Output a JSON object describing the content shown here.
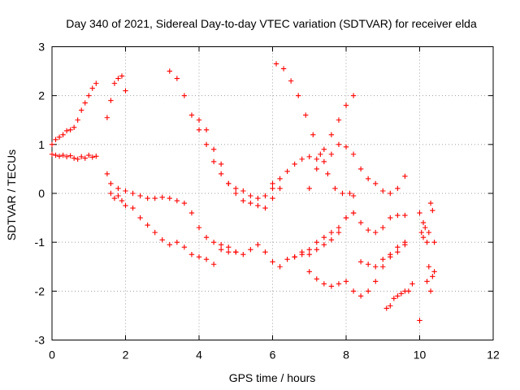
{
  "chart_data": {
    "type": "scatter",
    "title": "Day 340 of 2021, Sidereal Day-to-day VTEC variation (SDTVAR) for receiver elda",
    "xlabel": "GPS time / hours",
    "ylabel": "SDTVAR / TECUs",
    "xlim": [
      0,
      12
    ],
    "ylim": [
      -3,
      3
    ],
    "x_ticks": [
      0,
      2,
      4,
      6,
      8,
      10,
      12
    ],
    "y_ticks": [
      -3,
      -2,
      -1,
      0,
      1,
      2,
      3
    ],
    "x_tick_labels": [
      "0",
      "2",
      "4",
      "6",
      "8",
      "10",
      "12"
    ],
    "y_tick_labels": [
      "-3",
      "-2",
      "-1",
      "0",
      "1",
      "2",
      "3"
    ],
    "grid": true,
    "marker": "+",
    "color": "#ff0000",
    "series": [
      {
        "x": [
          0.0,
          0.1,
          0.2,
          0.3,
          0.4,
          0.5,
          0.6,
          0.7,
          0.8,
          0.9,
          1.0,
          1.1,
          1.2
        ],
        "y": [
          0.8,
          0.78,
          0.76,
          0.78,
          0.75,
          0.77,
          0.72,
          0.7,
          0.75,
          0.72,
          0.78,
          0.74,
          0.76
        ]
      },
      {
        "x": [
          0.0,
          0.1,
          0.2,
          0.3,
          0.4,
          0.5,
          0.6,
          0.7,
          0.8,
          0.9,
          1.0,
          1.1,
          1.2
        ],
        "y": [
          1.0,
          1.1,
          1.15,
          1.2,
          1.28,
          1.3,
          1.35,
          1.5,
          1.7,
          1.85,
          2.0,
          2.15,
          2.25
        ]
      },
      {
        "x": [
          1.5,
          1.6,
          1.7,
          1.8,
          1.9,
          2.0
        ],
        "y": [
          1.55,
          1.9,
          2.25,
          2.35,
          2.4,
          2.1
        ]
      },
      {
        "x": [
          1.5,
          1.6,
          1.7,
          1.8,
          1.9,
          2.0,
          2.2,
          2.4,
          2.6,
          2.8,
          3.0,
          3.2,
          3.4,
          3.6,
          3.8,
          4.0,
          4.2,
          4.4
        ],
        "y": [
          0.4,
          0.0,
          -0.1,
          -0.05,
          -0.15,
          -0.25,
          -0.3,
          -0.5,
          -0.65,
          -0.8,
          -0.95,
          -1.05,
          -1.0,
          -1.1,
          -1.25,
          -1.3,
          -1.35,
          -1.45
        ]
      },
      {
        "x": [
          1.6,
          1.8,
          2.0,
          2.2,
          2.4,
          2.6,
          2.8,
          3.0,
          3.2,
          3.4,
          3.6,
          3.8,
          4.0,
          4.2,
          4.4,
          4.6,
          4.8,
          5.0
        ],
        "y": [
          0.2,
          0.1,
          0.05,
          0.0,
          -0.05,
          -0.1,
          -0.1,
          -0.08,
          -0.1,
          -0.15,
          -0.2,
          -0.4,
          -0.7,
          -0.9,
          -1.0,
          -1.05,
          -1.1,
          -1.2
        ]
      },
      {
        "x": [
          3.2,
          3.4,
          3.6,
          3.8,
          4.0,
          4.2,
          4.4,
          4.6,
          4.8,
          5.0,
          5.2,
          5.4,
          5.6,
          5.8,
          6.0
        ],
        "y": [
          2.5,
          2.35,
          2.0,
          1.6,
          1.3,
          1.0,
          0.65,
          0.4,
          0.2,
          0.1,
          0.05,
          -0.05,
          -0.1,
          -0.05,
          0.1
        ]
      },
      {
        "x": [
          4.0,
          4.2,
          4.4,
          4.6,
          4.8,
          5.0,
          5.2,
          5.4,
          5.6,
          5.8,
          6.0,
          6.2
        ],
        "y": [
          1.5,
          1.3,
          0.9,
          0.6,
          0.2,
          0.0,
          -0.15,
          -0.2,
          -0.25,
          -0.3,
          -0.1,
          0.1
        ]
      },
      {
        "x": [
          4.6,
          4.8,
          5.0,
          5.2,
          5.4,
          5.6,
          5.8,
          6.0,
          6.2,
          6.4,
          6.6,
          6.8,
          7.0,
          7.2,
          7.4,
          7.6,
          7.8,
          8.0,
          8.2
        ],
        "y": [
          -1.15,
          -1.2,
          -1.2,
          -1.25,
          -1.15,
          -1.05,
          -1.2,
          -1.4,
          -1.5,
          -1.35,
          -1.3,
          -1.25,
          -1.15,
          -1.0,
          -0.9,
          -0.8,
          -0.7,
          -0.5,
          -0.4
        ]
      },
      {
        "x": [
          6.0,
          6.2,
          6.4,
          6.6,
          6.8,
          7.0,
          7.2,
          7.4,
          7.6,
          7.8,
          8.0,
          8.2,
          8.4,
          8.6,
          8.8,
          9.0,
          9.2,
          9.4,
          9.6
        ],
        "y": [
          0.2,
          0.3,
          0.45,
          0.6,
          0.7,
          0.75,
          0.7,
          0.65,
          0.8,
          1.0,
          0.95,
          0.8,
          0.5,
          0.3,
          0.2,
          0.05,
          0.0,
          0.1,
          0.35
        ]
      },
      {
        "x": [
          6.1,
          6.3,
          6.5,
          6.7,
          6.9,
          7.1,
          7.3,
          7.5,
          7.7,
          7.9,
          8.1,
          8.2
        ],
        "y": [
          2.65,
          2.55,
          2.3,
          2.0,
          1.6,
          1.2,
          0.8,
          0.4,
          0.1,
          0.0,
          0.0,
          -0.05
        ]
      },
      {
        "x": [
          6.6,
          6.8,
          7.0,
          7.2,
          7.4,
          7.6,
          7.8,
          8.0,
          8.2
        ],
        "y": [
          -1.3,
          -1.2,
          -1.25,
          -1.15,
          -1.05,
          -0.95,
          -0.8,
          -0.5,
          -0.4
        ]
      },
      {
        "x": [
          7.0,
          7.2,
          7.4,
          7.6,
          7.8,
          8.0,
          8.2
        ],
        "y": [
          0.1,
          0.5,
          0.9,
          1.2,
          1.5,
          1.8,
          2.0
        ]
      },
      {
        "x": [
          7.0,
          7.2,
          7.4,
          7.6,
          7.8,
          8.0,
          8.2,
          8.4,
          8.6,
          8.8,
          9.0,
          9.2,
          9.4,
          9.6
        ],
        "y": [
          -1.6,
          -1.75,
          -1.85,
          -1.9,
          -1.85,
          -1.8,
          -2.0,
          -2.1,
          -2.0,
          -1.8,
          -1.5,
          -1.25,
          -1.1,
          -1.05
        ]
      },
      {
        "x": [
          8.4,
          8.6,
          8.8,
          9.0,
          9.2,
          9.4,
          9.6
        ],
        "y": [
          -0.6,
          -0.75,
          -0.8,
          -0.7,
          -0.5,
          -0.45,
          -0.45
        ]
      },
      {
        "x": [
          8.4,
          8.6,
          8.8,
          9.0,
          9.2,
          9.4,
          9.6
        ],
        "y": [
          -1.4,
          -1.45,
          -1.5,
          -1.35,
          -1.3,
          -1.2,
          -1.0
        ]
      },
      {
        "x": [
          9.1,
          9.2,
          9.3,
          9.4,
          9.5,
          9.6,
          9.7,
          9.8
        ],
        "y": [
          -2.35,
          -2.3,
          -2.15,
          -2.1,
          -2.05,
          -2.0,
          -2.0,
          -1.85
        ]
      },
      {
        "x": [
          10.0,
          10.05,
          10.1,
          10.15,
          10.2,
          10.25,
          10.3,
          10.35,
          10.4
        ],
        "y": [
          -2.6,
          -0.8,
          -0.9,
          -0.7,
          -1.0,
          -0.8,
          -0.2,
          -0.35,
          -1.0
        ]
      },
      {
        "x": [
          10.0,
          10.1,
          10.2,
          10.25,
          10.3,
          10.35,
          10.4
        ],
        "y": [
          -0.4,
          -0.6,
          -1.8,
          -1.5,
          -2.0,
          -1.7,
          -1.6
        ]
      }
    ]
  }
}
